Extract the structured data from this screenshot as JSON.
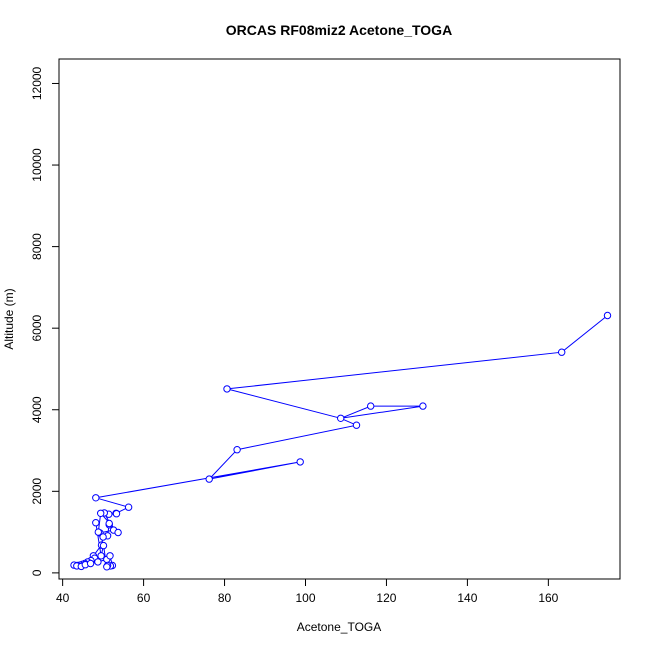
{
  "chart_data": {
    "type": "line",
    "title": "ORCAS RF08miz2 Acetone_TOGA",
    "xlabel": "Acetone_TOGA",
    "ylabel": "Altitude (m)",
    "xlim": [
      39.1,
      177.7
    ],
    "ylim": [
      -150,
      12600
    ],
    "xticks": [
      40,
      60,
      80,
      100,
      120,
      140,
      160
    ],
    "yticks": [
      0,
      2000,
      4000,
      6000,
      8000,
      10000,
      12000
    ],
    "grid": false,
    "legend": "none",
    "series_color": "#0000ff",
    "series": [
      {
        "x": [
          174.6,
          163.3,
          80.6,
          108.7,
          112.6,
          83.1,
          76.2,
          98.7,
          48.2,
          56.3,
          53.2,
          53.3,
          51.4,
          50.3,
          52.6,
          49.2,
          48.8,
          49.4,
          53.7,
          51.5,
          51.5,
          51.1,
          50.0,
          49.6,
          47.6,
          47.9,
          47.0,
          46.2,
          45.5,
          44.9,
          44.3,
          43.6,
          42.8,
          43.5,
          44.6,
          45.6,
          46.9,
          48.7,
          50.9,
          51.7,
          52.3,
          51.8,
          51.1,
          50.9,
          50.1,
          49.5,
          48.2
        ],
        "y": [
          6310,
          5410,
          4510,
          3790,
          3620,
          3020,
          2300,
          2720,
          1840,
          1610,
          1460,
          1450,
          1440,
          1470,
          1050,
          980,
          1000,
          1460,
          990,
          1180,
          1210,
          910,
          880,
          680,
          420,
          360,
          300,
          270,
          230,
          210,
          190,
          180,
          190,
          170,
          160,
          200,
          230,
          270,
          330,
          420,
          180,
          170,
          180,
          150,
          670,
          420,
          1230
        ]
      }
    ],
    "loop_segment": {
      "x": [
        108.7,
        116.1,
        129.0,
        108.7
      ],
      "y": [
        3790,
        4090,
        4090,
        3790
      ]
    }
  }
}
